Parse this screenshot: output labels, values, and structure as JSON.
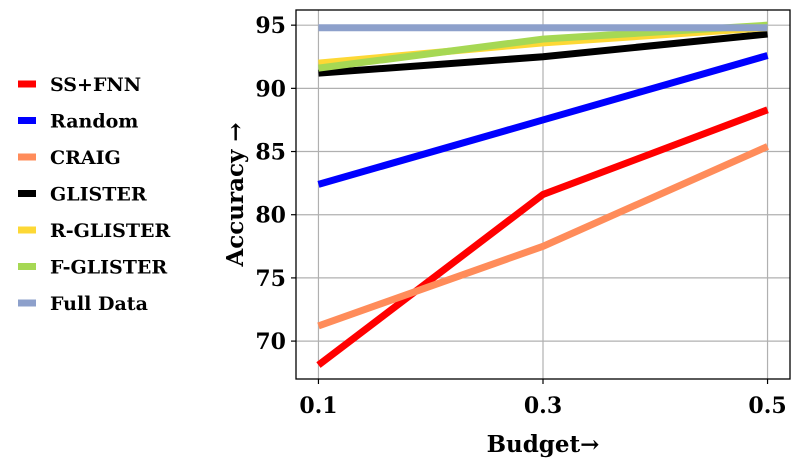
{
  "chart_data": {
    "type": "line",
    "x": [
      0.1,
      0.3,
      0.5
    ],
    "x_tick_labels": [
      "0.1",
      "0.3",
      "0.5"
    ],
    "xlabel": "Budget→",
    "ylabel": "Accuracy →",
    "xlim": [
      0.08,
      0.52
    ],
    "ylim": [
      67,
      96.2
    ],
    "y_ticks": [
      70,
      75,
      80,
      85,
      90,
      95
    ],
    "y_tick_labels": [
      "70",
      "75",
      "80",
      "85",
      "90",
      "95"
    ],
    "grid": true,
    "legend_position": "left-outside",
    "series": [
      {
        "name": "SS+FNN",
        "color": "#ff0000",
        "values": [
          68.1,
          81.6,
          88.3
        ]
      },
      {
        "name": "Random",
        "color": "#0000ff",
        "values": [
          82.4,
          87.5,
          92.6
        ]
      },
      {
        "name": "CRAIG",
        "color": "#ff8c5a",
        "values": [
          71.2,
          77.5,
          85.4
        ]
      },
      {
        "name": "GLISTER",
        "color": "#000000",
        "values": [
          91.2,
          92.5,
          94.3
        ]
      },
      {
        "name": "R-GLISTER",
        "color": "#fdd835",
        "values": [
          92.0,
          93.6,
          94.8
        ]
      },
      {
        "name": "F-GLISTER",
        "color": "#a6d854",
        "values": [
          91.6,
          93.9,
          95.0
        ]
      },
      {
        "name": "Full Data",
        "color": "#8da0cb",
        "values": [
          94.8,
          94.8,
          94.8
        ]
      }
    ]
  }
}
